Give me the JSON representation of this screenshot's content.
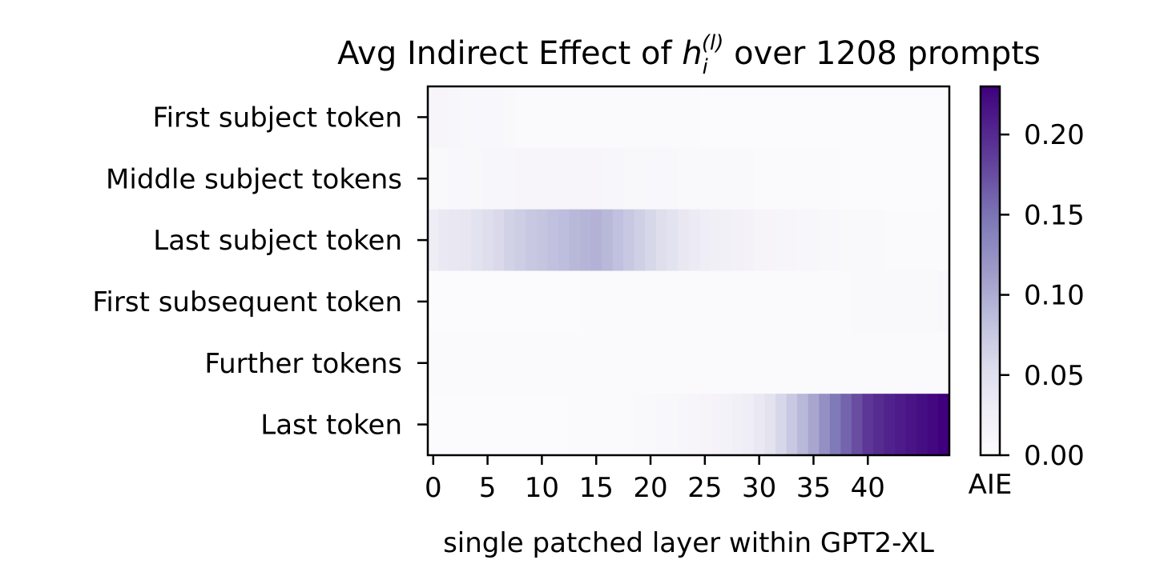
{
  "chart_data": {
    "type": "heatmap",
    "title_prefix": "Avg Indirect Effect of ",
    "title_math": {
      "base": "h",
      "sub": "i",
      "sup": "(l)"
    },
    "title_suffix": " over 1208 prompts",
    "xlabel": "single patched layer within GPT2-XL",
    "ylabel": "",
    "x_ticks": [
      "0",
      "5",
      "10",
      "15",
      "20",
      "25",
      "30",
      "35",
      "40"
    ],
    "x_tick_values": [
      0,
      5,
      10,
      15,
      20,
      25,
      30,
      35,
      40
    ],
    "n_layers": 48,
    "rows": [
      "First subject token",
      "Middle subject tokens",
      "Last subject token",
      "First subsequent token",
      "Further tokens",
      "Last token"
    ],
    "values": [
      [
        0.012,
        0.012,
        0.01,
        0.009,
        0.008,
        0.008,
        0.008,
        0.006,
        0.005,
        0.004,
        0.004,
        0.004,
        0.004,
        0.004,
        0.004,
        0.004,
        0.004,
        0.004,
        0.004,
        0.004,
        0.004,
        0.004,
        0.004,
        0.004,
        0.004,
        0.003,
        0.003,
        0.003,
        0.003,
        0.003,
        0.003,
        0.003,
        0.003,
        0.003,
        0.003,
        0.002,
        0.002,
        0.002,
        0.002,
        0.002,
        0.002,
        0.002,
        0.002,
        0.002,
        0.002,
        0.002,
        0.002,
        0.002
      ],
      [
        0.007,
        0.007,
        0.008,
        0.008,
        0.009,
        0.01,
        0.011,
        0.011,
        0.012,
        0.012,
        0.012,
        0.012,
        0.012,
        0.012,
        0.012,
        0.012,
        0.011,
        0.01,
        0.009,
        0.009,
        0.008,
        0.008,
        0.008,
        0.007,
        0.007,
        0.007,
        0.006,
        0.006,
        0.006,
        0.006,
        0.005,
        0.005,
        0.005,
        0.005,
        0.004,
        0.004,
        0.004,
        0.004,
        0.003,
        0.003,
        0.003,
        0.003,
        0.003,
        0.003,
        0.003,
        0.003,
        0.003,
        0.003
      ],
      [
        0.03,
        0.035,
        0.038,
        0.04,
        0.045,
        0.052,
        0.058,
        0.065,
        0.07,
        0.075,
        0.078,
        0.082,
        0.085,
        0.09,
        0.093,
        0.095,
        0.09,
        0.082,
        0.075,
        0.068,
        0.06,
        0.052,
        0.045,
        0.038,
        0.033,
        0.028,
        0.025,
        0.022,
        0.02,
        0.018,
        0.015,
        0.014,
        0.013,
        0.012,
        0.011,
        0.01,
        0.009,
        0.008,
        0.007,
        0.007,
        0.006,
        0.006,
        0.005,
        0.005,
        0.004,
        0.004,
        0.004,
        0.003
      ],
      [
        0.003,
        0.003,
        0.003,
        0.003,
        0.003,
        0.003,
        0.003,
        0.003,
        0.003,
        0.003,
        0.003,
        0.003,
        0.003,
        0.003,
        0.004,
        0.004,
        0.004,
        0.004,
        0.004,
        0.004,
        0.004,
        0.004,
        0.004,
        0.004,
        0.004,
        0.004,
        0.004,
        0.004,
        0.004,
        0.004,
        0.004,
        0.005,
        0.005,
        0.005,
        0.005,
        0.005,
        0.005,
        0.005,
        0.005,
        0.006,
        0.006,
        0.006,
        0.006,
        0.006,
        0.007,
        0.007,
        0.007,
        0.008
      ],
      [
        0.005,
        0.005,
        0.005,
        0.005,
        0.005,
        0.005,
        0.005,
        0.005,
        0.005,
        0.005,
        0.005,
        0.005,
        0.005,
        0.005,
        0.005,
        0.005,
        0.005,
        0.005,
        0.005,
        0.005,
        0.005,
        0.005,
        0.005,
        0.005,
        0.005,
        0.005,
        0.005,
        0.005,
        0.005,
        0.005,
        0.005,
        0.005,
        0.005,
        0.005,
        0.005,
        0.005,
        0.005,
        0.005,
        0.005,
        0.005,
        0.005,
        0.005,
        0.005,
        0.005,
        0.005,
        0.005,
        0.005,
        0.005
      ],
      [
        0.003,
        0.003,
        0.003,
        0.003,
        0.003,
        0.003,
        0.003,
        0.003,
        0.003,
        0.003,
        0.003,
        0.003,
        0.003,
        0.004,
        0.004,
        0.004,
        0.004,
        0.005,
        0.005,
        0.006,
        0.007,
        0.008,
        0.009,
        0.01,
        0.012,
        0.014,
        0.016,
        0.019,
        0.023,
        0.028,
        0.035,
        0.045,
        0.06,
        0.075,
        0.09,
        0.105,
        0.125,
        0.145,
        0.16,
        0.175,
        0.19,
        0.198,
        0.205,
        0.21,
        0.215,
        0.22,
        0.225,
        0.23
      ]
    ],
    "colormap": "Purples",
    "colorbar": {
      "label": "AIE",
      "min": 0.0,
      "max": 0.23,
      "ticks": [
        "0.00",
        "0.05",
        "0.10",
        "0.15",
        "0.20"
      ],
      "tick_values": [
        0.0,
        0.05,
        0.1,
        0.15,
        0.2
      ]
    }
  }
}
